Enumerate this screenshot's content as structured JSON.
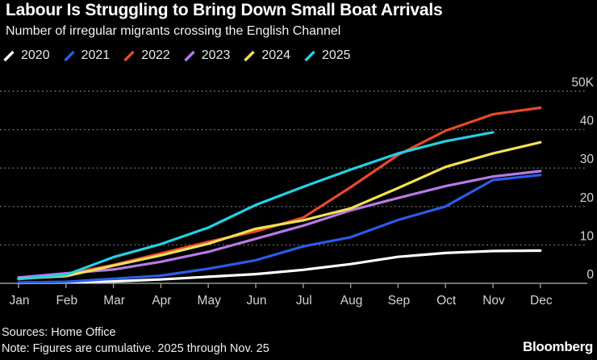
{
  "header": {
    "title": "Labour Is Struggling to Bring Down Small Boat Arrivals",
    "subtitle": "Number of irregular migrants crossing the English Channel"
  },
  "footer": {
    "sources": "Sources: Home Office",
    "note": "Note: Figures are cumulative. 2025 through Nov. 25",
    "brand": "Bloomberg"
  },
  "chart_data": {
    "type": "line",
    "title": "Labour Is Struggling to Bring Down Small Boat Arrivals",
    "subtitle": "Number of irregular migrants crossing the English Channel",
    "xlabel": "",
    "ylabel": "",
    "values_unit": "thousands of people (cumulative)",
    "categories": [
      "Jan",
      "Feb",
      "Mar",
      "Apr",
      "May",
      "Jun",
      "Jul",
      "Aug",
      "Sep",
      "Oct",
      "Nov",
      "Dec"
    ],
    "ylim": [
      0,
      50
    ],
    "yticks": [
      {
        "label": "0",
        "value": 0
      },
      {
        "label": "10",
        "value": 10
      },
      {
        "label": "20",
        "value": 20
      },
      {
        "label": "30",
        "value": 30
      },
      {
        "label": "40",
        "value": 40
      },
      {
        "label": "50K",
        "value": 50
      }
    ],
    "grid": "dotted horizontal gridlines, solid zero baseline",
    "legend_position": "top-left",
    "background": "#000000",
    "series": [
      {
        "name": "2020",
        "color": "#ffffff",
        "values": [
          0.1,
          0.3,
          0.5,
          1.0,
          1.7,
          2.4,
          3.5,
          5.0,
          6.9,
          7.9,
          8.4,
          8.5
        ]
      },
      {
        "name": "2021",
        "color": "#2a5cea",
        "values": [
          0.2,
          0.4,
          1.2,
          2.0,
          3.8,
          6.0,
          9.6,
          12.0,
          16.5,
          20.0,
          26.9,
          28.2
        ]
      },
      {
        "name": "2022",
        "color": "#e8492a",
        "values": [
          1.3,
          2.4,
          4.8,
          7.8,
          10.8,
          13.5,
          17.1,
          25.0,
          33.4,
          39.7,
          44.0,
          45.7
        ]
      },
      {
        "name": "2023",
        "color": "#b87ae8",
        "values": [
          1.5,
          2.6,
          3.6,
          5.6,
          8.2,
          11.6,
          15.0,
          19.0,
          22.2,
          25.3,
          27.8,
          29.2
        ]
      },
      {
        "name": "2024",
        "color": "#f2e158",
        "values": [
          1.2,
          1.9,
          4.6,
          7.3,
          10.3,
          14.2,
          16.4,
          19.5,
          24.8,
          30.3,
          33.8,
          36.7
        ]
      },
      {
        "name": "2025",
        "color": "#25d0e3",
        "values": [
          1.1,
          2.2,
          6.8,
          10.2,
          14.5,
          20.4,
          25.1,
          29.6,
          33.8,
          37.0,
          39.3
        ]
      }
    ],
    "colors": {
      "gridline": "#6e6e6e",
      "axis": "#999999",
      "tick_label": "#d4d4d4"
    }
  }
}
